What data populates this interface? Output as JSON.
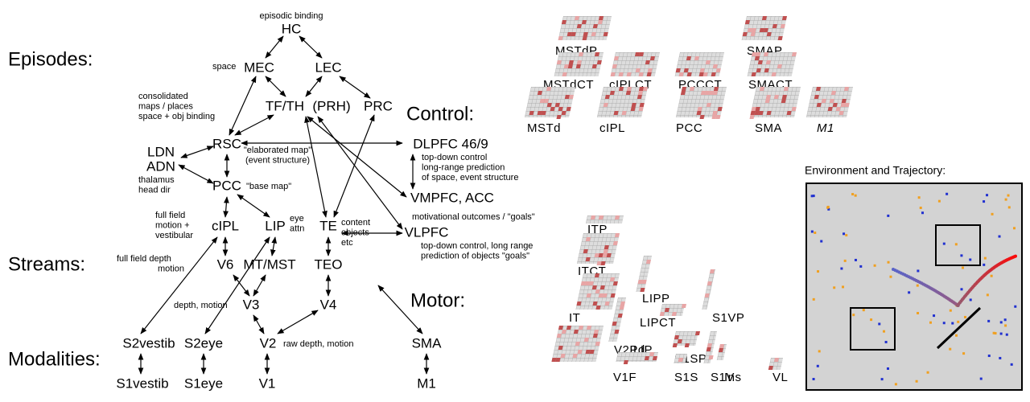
{
  "sections": [
    "Episodes:",
    "Control:",
    "Streams:",
    "Motor:",
    "Modalities:"
  ],
  "nodes": [
    "HC",
    "MEC",
    "LEC",
    "TF/TH",
    "(PRH)",
    "PRC",
    "RSC",
    "LDN",
    "ADN",
    "PCC",
    "cIPL",
    "LIP",
    "TE",
    "V6",
    "MT/MST",
    "TEO",
    "V3",
    "V4",
    "V2",
    "SMA",
    "S2vestib",
    "S2eye",
    "S1vestib",
    "S1eye",
    "V1",
    "M1",
    "DLPFC 46/9",
    "VMPFC, ACC",
    "VLPFC"
  ],
  "annotations": [
    [
      "episodic binding"
    ],
    [
      "space"
    ],
    [
      "consolidated",
      "maps / places",
      "space + obj binding"
    ],
    [
      "\"elaborated map\"",
      "(event structure)"
    ],
    [
      "thalamus",
      "head dir"
    ],
    [
      "\"base map\""
    ],
    [
      "full field",
      "motion +",
      "vestibular"
    ],
    [
      "eye",
      "attn"
    ],
    [
      "content",
      "objects",
      "etc"
    ],
    [
      "full field depth",
      "motion"
    ],
    [
      "depth, motion"
    ],
    [
      "raw depth, motion"
    ],
    [
      "top-down control",
      "long-range prediction",
      "of space, event structure"
    ],
    [
      "motivational outcomes / \"goals\""
    ],
    [
      "top-down control, long range",
      "prediction of objects \"goals\""
    ]
  ],
  "panels": [
    "MSTdP",
    "MSTdCT",
    "cIPLCT",
    "PCCCT",
    "SMAP",
    "SMACT",
    "MSTd",
    "cIPL",
    "PCC",
    "SMA",
    "M1",
    "ITP",
    "ITCT",
    "IT",
    "LIPP",
    "LIPCT",
    "V2Pd",
    "LIP",
    "V1F",
    "S1S",
    "S1SP",
    "S1VP",
    "S1V",
    "Ins",
    "VL"
  ],
  "environment_title": "Environment and Trajectory:"
}
